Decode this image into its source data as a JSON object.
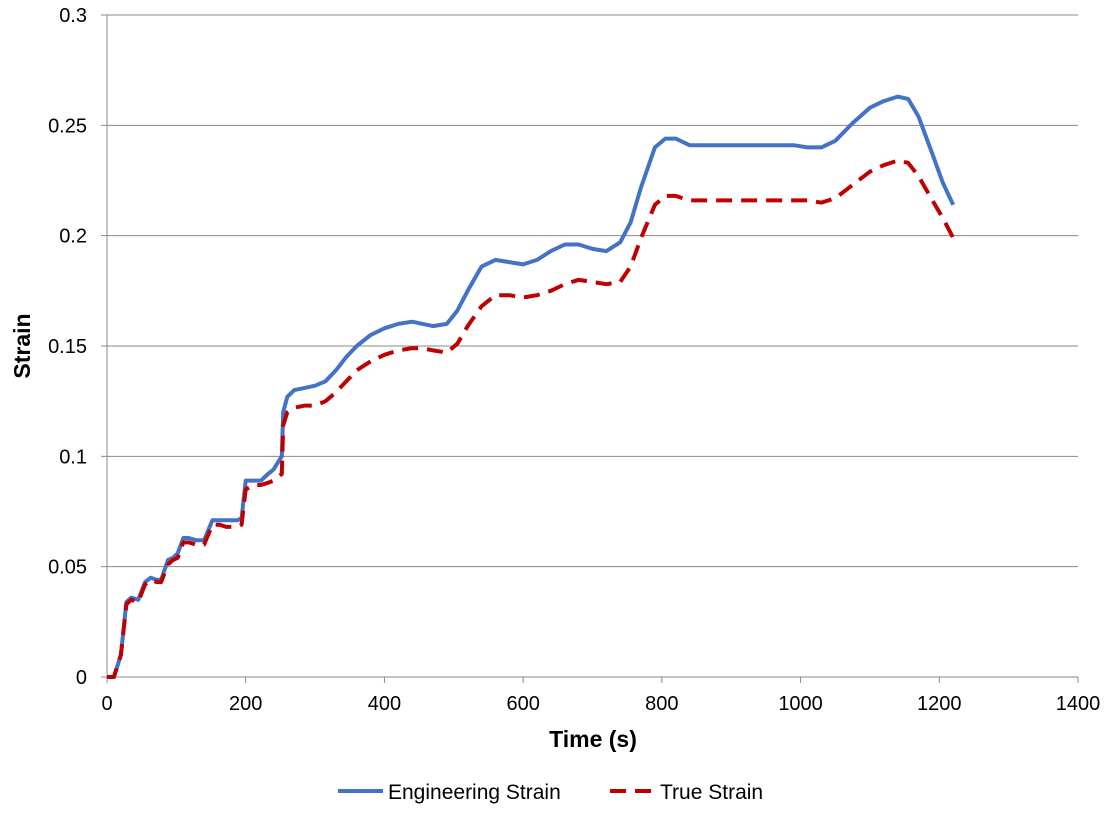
{
  "chart_data": {
    "type": "line",
    "title": "",
    "xlabel": "Time (s)",
    "ylabel": "Strain",
    "xlim": [
      0,
      1400
    ],
    "ylim": [
      0,
      0.3
    ],
    "xticks": [
      0,
      200,
      400,
      600,
      800,
      1000,
      1200,
      1400
    ],
    "yticks": [
      0,
      0.05,
      0.1,
      0.15,
      0.2,
      0.25,
      0.3
    ],
    "xtick_labels": [
      "0",
      "200",
      "400",
      "600",
      "800",
      "1000",
      "1200",
      "1400"
    ],
    "ytick_labels": [
      "0",
      "0.05",
      "0.1",
      "0.15",
      "0.2",
      "0.25",
      "0.3"
    ],
    "grid": "horizontal",
    "legend": "bottom",
    "series": [
      {
        "name": "Engineering Strain",
        "color": "#4472C4",
        "style": "solid",
        "x": [
          0,
          10,
          20,
          28,
          35,
          45,
          55,
          63,
          72,
          78,
          88,
          95,
          102,
          110,
          118,
          128,
          140,
          152,
          162,
          172,
          180,
          188,
          194,
          200,
          212,
          222,
          232,
          240,
          248,
          252,
          254,
          260,
          270,
          285,
          300,
          315,
          330,
          345,
          360,
          380,
          400,
          420,
          440,
          455,
          470,
          490,
          505,
          520,
          540,
          560,
          580,
          600,
          620,
          640,
          660,
          680,
          700,
          720,
          740,
          755,
          770,
          790,
          805,
          820,
          840,
          860,
          900,
          950,
          990,
          1010,
          1030,
          1050,
          1075,
          1100,
          1120,
          1140,
          1155,
          1170,
          1190,
          1205,
          1220
        ],
        "y": [
          0,
          0,
          0.01,
          0.034,
          0.036,
          0.035,
          0.043,
          0.045,
          0.044,
          0.044,
          0.053,
          0.054,
          0.056,
          0.063,
          0.063,
          0.062,
          0.062,
          0.071,
          0.071,
          0.071,
          0.071,
          0.071,
          0.072,
          0.089,
          0.089,
          0.089,
          0.092,
          0.094,
          0.098,
          0.1,
          0.12,
          0.127,
          0.13,
          0.131,
          0.132,
          0.134,
          0.139,
          0.145,
          0.15,
          0.155,
          0.158,
          0.16,
          0.161,
          0.16,
          0.159,
          0.16,
          0.166,
          0.175,
          0.186,
          0.189,
          0.188,
          0.187,
          0.189,
          0.193,
          0.196,
          0.196,
          0.194,
          0.193,
          0.197,
          0.206,
          0.222,
          0.24,
          0.244,
          0.244,
          0.241,
          0.241,
          0.241,
          0.241,
          0.241,
          0.24,
          0.24,
          0.243,
          0.251,
          0.258,
          0.261,
          0.263,
          0.262,
          0.254,
          0.237,
          0.224,
          0.214
        ]
      },
      {
        "name": "True Strain",
        "color": "#C00000",
        "style": "dashed",
        "x": [
          0,
          10,
          20,
          28,
          35,
          45,
          55,
          63,
          72,
          78,
          88,
          95,
          102,
          110,
          118,
          128,
          140,
          152,
          162,
          172,
          180,
          188,
          194,
          200,
          212,
          222,
          232,
          240,
          248,
          252,
          254,
          260,
          270,
          285,
          300,
          315,
          330,
          345,
          360,
          380,
          400,
          420,
          440,
          455,
          470,
          490,
          505,
          520,
          540,
          560,
          580,
          600,
          620,
          640,
          660,
          680,
          700,
          720,
          740,
          755,
          770,
          790,
          805,
          820,
          840,
          860,
          900,
          950,
          990,
          1010,
          1030,
          1050,
          1075,
          1100,
          1120,
          1140,
          1155,
          1170,
          1190,
          1205,
          1220
        ],
        "y": [
          0,
          0,
          0.01,
          0.033,
          0.035,
          0.034,
          0.042,
          0.044,
          0.043,
          0.043,
          0.051,
          0.053,
          0.054,
          0.061,
          0.061,
          0.06,
          0.06,
          0.069,
          0.069,
          0.068,
          0.068,
          0.068,
          0.069,
          0.085,
          0.087,
          0.087,
          0.088,
          0.089,
          0.091,
          0.092,
          0.114,
          0.12,
          0.122,
          0.123,
          0.123,
          0.125,
          0.129,
          0.134,
          0.139,
          0.143,
          0.146,
          0.148,
          0.149,
          0.149,
          0.148,
          0.147,
          0.151,
          0.159,
          0.168,
          0.173,
          0.173,
          0.172,
          0.173,
          0.175,
          0.178,
          0.18,
          0.179,
          0.178,
          0.179,
          0.186,
          0.199,
          0.214,
          0.218,
          0.218,
          0.216,
          0.216,
          0.216,
          0.216,
          0.216,
          0.216,
          0.215,
          0.217,
          0.223,
          0.229,
          0.232,
          0.234,
          0.233,
          0.227,
          0.216,
          0.208,
          0.199
        ]
      }
    ]
  }
}
